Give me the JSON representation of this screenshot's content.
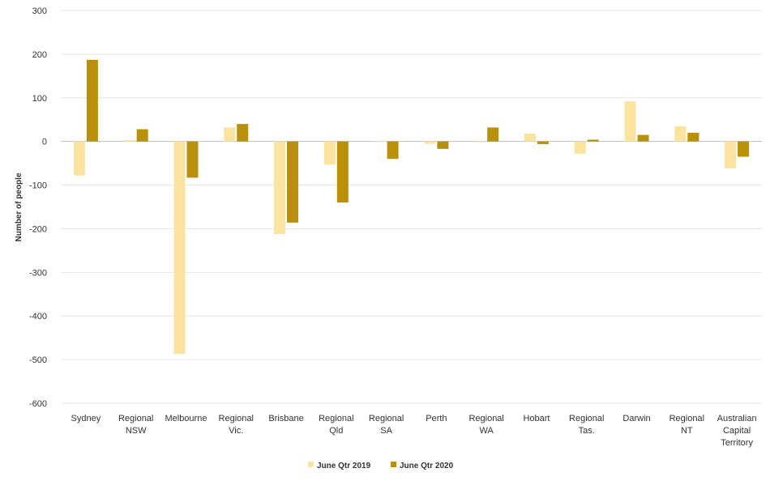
{
  "chart_data": {
    "type": "bar",
    "title": "",
    "xlabel": "",
    "ylabel": "Number of people",
    "ylim": [
      -600,
      300
    ],
    "yticks": [
      300,
      200,
      100,
      0,
      -100,
      -200,
      -300,
      -400,
      -500,
      -600
    ],
    "grid": true,
    "legend_position": "bottom",
    "categories": [
      [
        "Sydney"
      ],
      [
        "Regional",
        "NSW"
      ],
      [
        "Melbourne"
      ],
      [
        "Regional",
        "Vic."
      ],
      [
        "Brisbane"
      ],
      [
        "Regional",
        "Qld"
      ],
      [
        "Regional",
        "SA"
      ],
      [
        "Perth"
      ],
      [
        "Regional",
        "WA"
      ],
      [
        "Hobart"
      ],
      [
        "Regional",
        "Tas."
      ],
      [
        "Darwin"
      ],
      [
        "Regional",
        "NT"
      ],
      [
        "Australian",
        "Capital",
        "Territory"
      ]
    ],
    "series": [
      {
        "name": "June Qtr 2019",
        "color": "#fbe3a0",
        "values": [
          -78,
          3,
          -487,
          32,
          -212,
          -53,
          0,
          -5,
          -2,
          18,
          -28,
          92,
          35,
          -62
        ]
      },
      {
        "name": "June Qtr 2020",
        "color": "#b8900a",
        "values": [
          187,
          28,
          -83,
          40,
          -186,
          -140,
          -40,
          -17,
          32,
          -6,
          4,
          15,
          20,
          -35
        ]
      }
    ]
  }
}
